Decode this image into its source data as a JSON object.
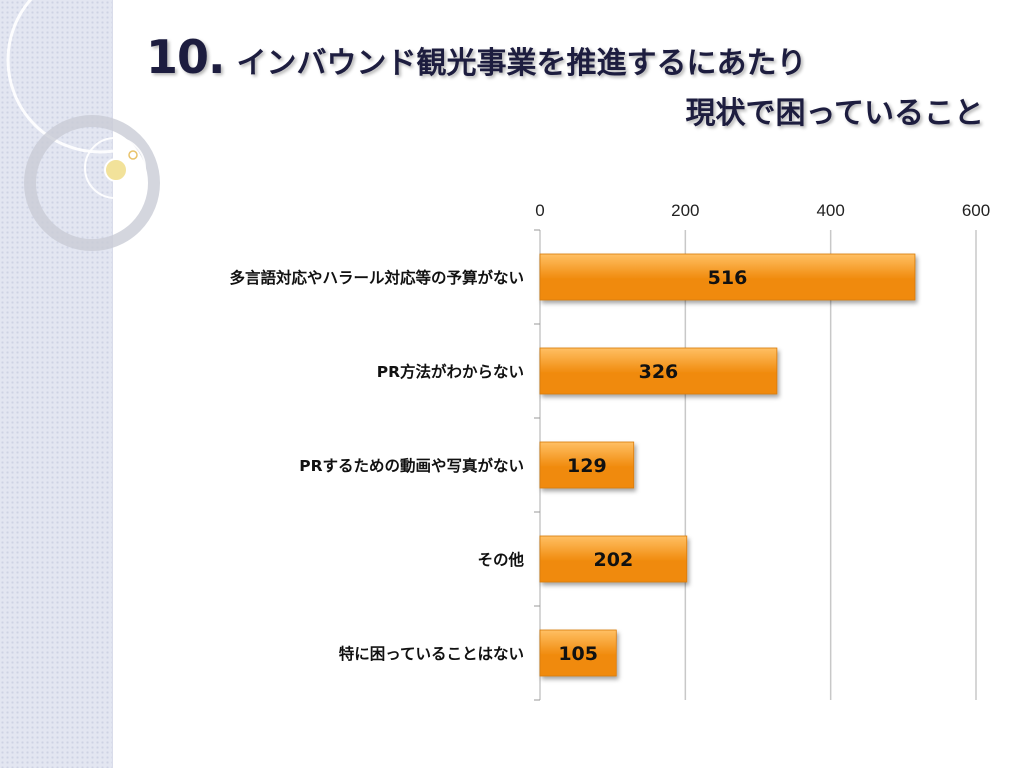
{
  "title": {
    "number": "10.",
    "line1": "インバウンド観光事業を推進するにあたり",
    "line2": "現状で困っていること"
  },
  "colors": {
    "bar_light": "#ffc064",
    "bar_dark": "#f08a0c",
    "grid": "#c8c8c8",
    "title": "#1d1d3f"
  },
  "chart_data": {
    "type": "bar",
    "orientation": "horizontal",
    "categories": [
      "多言語対応やハラール対応等の予算がない",
      "PR方法がわからない",
      "PRするための動画や写真がない",
      "その他",
      "特に困っていることはない"
    ],
    "values": [
      516,
      326,
      129,
      202,
      105
    ],
    "xlim": [
      0,
      600
    ],
    "ticks": [
      "0",
      "200",
      "400",
      "600"
    ],
    "grid": true,
    "data_labels": true
  }
}
